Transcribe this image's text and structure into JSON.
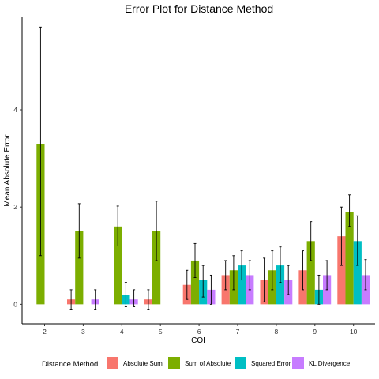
{
  "chart_data": {
    "type": "bar",
    "title": "Error Plot for Distance Method",
    "xlabel": "COI",
    "ylabel": "Mean Absolute Error",
    "categories": [
      "2",
      "3",
      "4",
      "5",
      "6",
      "7",
      "8",
      "9",
      "10"
    ],
    "y_ticks": [
      0,
      2,
      4
    ],
    "ylim": [
      -0.4,
      5.9
    ],
    "legend": {
      "title": "Distance Method",
      "position": "bottom"
    },
    "series": [
      {
        "name": "Absolute Sum",
        "color": "#F8766D",
        "values": [
          null,
          0.1,
          null,
          0.1,
          0.4,
          0.6,
          0.5,
          0.7,
          1.4
        ],
        "err_low": [
          null,
          -0.1,
          null,
          -0.1,
          0.1,
          0.3,
          0.05,
          0.3,
          0.8
        ],
        "err_high": [
          null,
          0.3,
          null,
          0.3,
          0.7,
          0.9,
          0.95,
          1.1,
          2.0
        ]
      },
      {
        "name": "Sum of Absolute",
        "color": "#7CAE00",
        "values": [
          3.3,
          1.5,
          1.6,
          1.5,
          0.9,
          0.7,
          0.7,
          1.3,
          1.9
        ],
        "err_low": [
          1.0,
          0.95,
          1.2,
          0.9,
          0.55,
          0.3,
          0.3,
          0.9,
          1.6
        ],
        "err_high": [
          5.7,
          2.07,
          2.02,
          2.12,
          1.25,
          1.0,
          1.1,
          1.7,
          2.25
        ]
      },
      {
        "name": "Squared Error",
        "color": "#00BFC4",
        "values": [
          null,
          null,
          0.2,
          null,
          0.5,
          0.8,
          0.8,
          0.3,
          1.3
        ],
        "err_low": [
          null,
          null,
          -0.05,
          null,
          0.15,
          0.5,
          0.45,
          0.0,
          0.8
        ],
        "err_high": [
          null,
          null,
          0.45,
          null,
          0.8,
          1.1,
          1.18,
          0.6,
          1.82
        ]
      },
      {
        "name": "KL Divergence",
        "color": "#C77CFF",
        "values": [
          null,
          0.1,
          0.1,
          null,
          0.3,
          0.6,
          0.5,
          0.6,
          0.6
        ],
        "err_low": [
          null,
          -0.1,
          -0.05,
          null,
          0.0,
          0.3,
          0.2,
          0.3,
          0.3
        ],
        "err_high": [
          null,
          0.3,
          0.3,
          null,
          0.6,
          0.9,
          0.8,
          0.9,
          0.92
        ]
      }
    ]
  }
}
